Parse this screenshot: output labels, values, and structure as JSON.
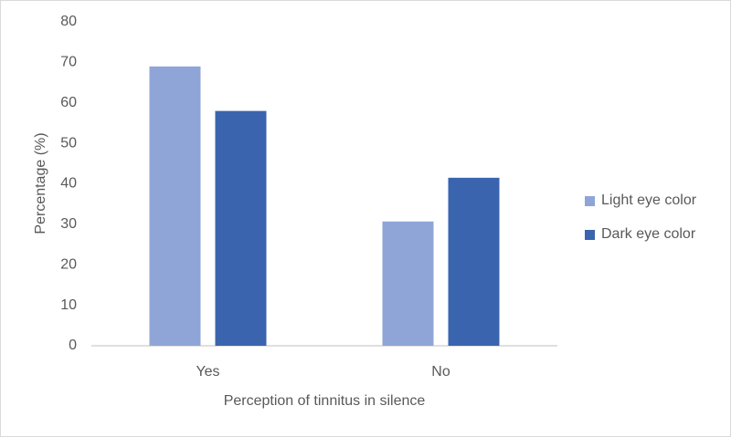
{
  "chart_data": {
    "type": "bar",
    "x_label": "Perception of tinnitus in silence",
    "y_label": "Percentage (%)",
    "categories": [
      "Yes",
      "No"
    ],
    "series": [
      {
        "name": "Light eye color",
        "color": "#8fa5d8",
        "values": [
          69,
          30.7
        ]
      },
      {
        "name": "Dark eye color",
        "color": "#3a64ae",
        "values": [
          58,
          41.5
        ]
      }
    ],
    "ylim": [
      0,
      80
    ],
    "yticks": [
      0,
      10,
      20,
      30,
      40,
      50,
      60,
      70,
      80
    ],
    "grid": false,
    "legend": "right"
  }
}
